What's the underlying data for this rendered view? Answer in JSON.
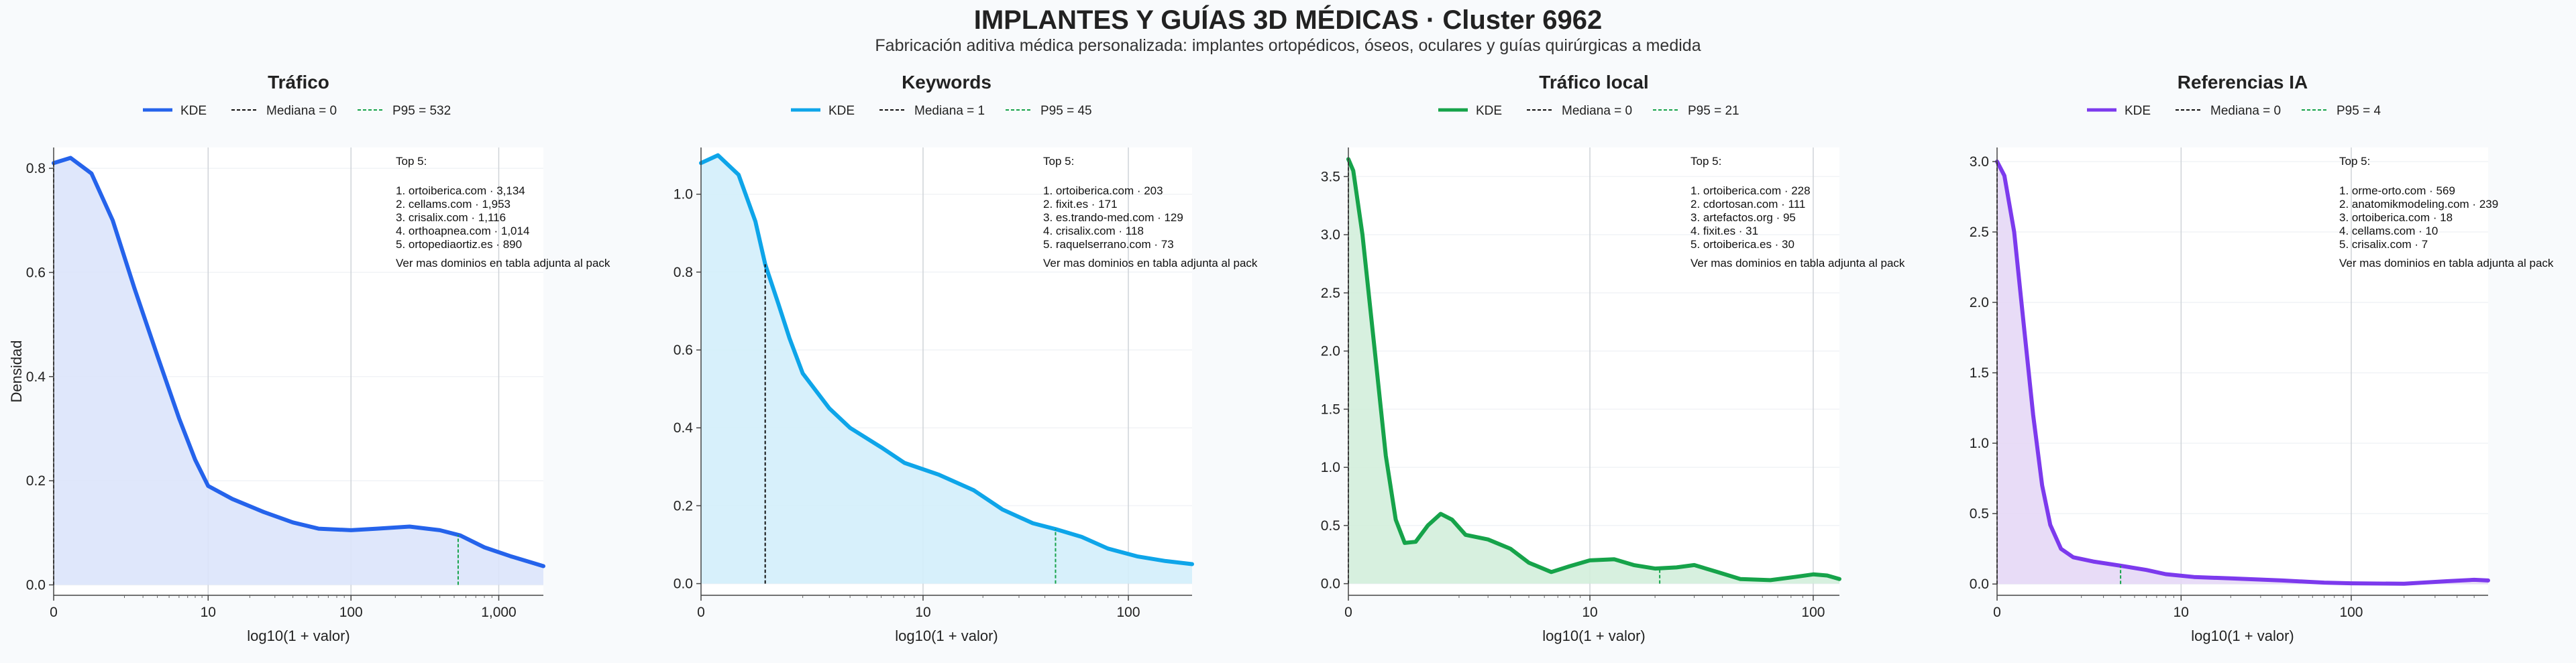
{
  "title": "IMPLANTES Y GUÍAS 3D MÉDICAS · Cluster 6962",
  "subtitle": "Fabricación aditiva médica personalizada: implantes ortopédicos, óseos, oculares y guías quirúrgicas a medida",
  "ylabel": "Densidad",
  "legend_labels": {
    "kde": "KDE"
  },
  "chart_data": [
    {
      "type": "area",
      "title": "Tráfico",
      "color": "#2563eb",
      "fill": "#dbe4fb",
      "xlabel": "log10(1 + valor)",
      "ylabel": "Densidad",
      "x_scale": "log10(1+x)",
      "xlim": [
        0,
        2000
      ],
      "ylim": [
        -0.02,
        0.84
      ],
      "xticks": [
        0,
        10,
        100,
        1000
      ],
      "xtick_labels": [
        "0",
        "10",
        "100",
        "1,000"
      ],
      "yticks": [
        0,
        0.2,
        0.4,
        0.6,
        0.8
      ],
      "ytick_labels": [
        "0.0",
        "0.2",
        "0.4",
        "0.6",
        "0.8"
      ],
      "kde": [
        [
          0,
          0.81
        ],
        [
          0.3,
          0.82
        ],
        [
          0.8,
          0.79
        ],
        [
          1.5,
          0.7
        ],
        [
          2.5,
          0.57
        ],
        [
          4,
          0.44
        ],
        [
          6,
          0.32
        ],
        [
          8,
          0.24
        ],
        [
          10,
          0.19
        ],
        [
          15,
          0.165
        ],
        [
          25,
          0.14
        ],
        [
          40,
          0.12
        ],
        [
          60,
          0.108
        ],
        [
          100,
          0.105
        ],
        [
          150,
          0.108
        ],
        [
          250,
          0.112
        ],
        [
          400,
          0.105
        ],
        [
          550,
          0.095
        ],
        [
          800,
          0.072
        ],
        [
          1200,
          0.055
        ],
        [
          1700,
          0.042
        ],
        [
          2000,
          0.036
        ]
      ],
      "median": {
        "label": "Mediana = 0",
        "value": 0
      },
      "p95": {
        "label": "P95 = 532",
        "value": 532
      },
      "top5_header": "Top 5:",
      "top5": [
        "1. ortoiberica.com · 3,134",
        "2. cellams.com · 1,953",
        "3. crisalix.com · 1,116",
        "4. orthoapnea.com · 1,014",
        "5. ortopediaortiz.es · 890"
      ],
      "footnote": "Ver mas dominios en tabla adjunta al pack"
    },
    {
      "type": "area",
      "title": "Keywords",
      "color": "#0ea5e9",
      "fill": "#d3eefb",
      "xlabel": "log10(1 + valor)",
      "ylabel": "",
      "x_scale": "log10(1+x)",
      "xlim": [
        0,
        200
      ],
      "ylim": [
        -0.03,
        1.12
      ],
      "xticks": [
        0,
        10,
        100
      ],
      "xtick_labels": [
        "0",
        "10",
        "100"
      ],
      "yticks": [
        0,
        0.2,
        0.4,
        0.6,
        0.8,
        1.0
      ],
      "ytick_labels": [
        "0.0",
        "0.2",
        "0.4",
        "0.6",
        "0.8",
        "1.0"
      ],
      "kde": [
        [
          0,
          1.08
        ],
        [
          0.2,
          1.1
        ],
        [
          0.5,
          1.05
        ],
        [
          0.8,
          0.93
        ],
        [
          1,
          0.82
        ],
        [
          1.3,
          0.72
        ],
        [
          1.6,
          0.63
        ],
        [
          2,
          0.54
        ],
        [
          3,
          0.45
        ],
        [
          4,
          0.4
        ],
        [
          6,
          0.35
        ],
        [
          8,
          0.31
        ],
        [
          12,
          0.28
        ],
        [
          18,
          0.24
        ],
        [
          25,
          0.19
        ],
        [
          35,
          0.155
        ],
        [
          45,
          0.14
        ],
        [
          60,
          0.12
        ],
        [
          80,
          0.09
        ],
        [
          110,
          0.07
        ],
        [
          150,
          0.058
        ],
        [
          200,
          0.05
        ]
      ],
      "median": {
        "label": "Mediana = 1",
        "value": 1
      },
      "p95": {
        "label": "P95 = 45",
        "value": 45
      },
      "top5_header": "Top 5:",
      "top5": [
        "1. ortoiberica.com · 203",
        "2. fixit.es · 171",
        "3. es.trando-med.com · 129",
        "4. crisalix.com · 118",
        "5. raquelserrano.com · 73"
      ],
      "footnote": "Ver mas dominios en tabla adjunta al pack"
    },
    {
      "type": "area",
      "title": "Tráfico local",
      "color": "#16a34a",
      "fill": "#d3eedb",
      "xlabel": "log10(1 + valor)",
      "ylabel": "",
      "x_scale": "log10(1+x)",
      "xlim": [
        0,
        130
      ],
      "ylim": [
        -0.1,
        3.75
      ],
      "xticks": [
        0,
        10,
        100
      ],
      "xtick_labels": [
        "0",
        "10",
        "100"
      ],
      "yticks": [
        0,
        0.5,
        1.0,
        1.5,
        2.0,
        2.5,
        3.0,
        3.5
      ],
      "ytick_labels": [
        "0.0",
        "0.5",
        "1.0",
        "1.5",
        "2.0",
        "2.5",
        "3.0",
        "3.5"
      ],
      "kde": [
        [
          0,
          3.65
        ],
        [
          0.05,
          3.55
        ],
        [
          0.15,
          3.0
        ],
        [
          0.3,
          2.0
        ],
        [
          0.45,
          1.1
        ],
        [
          0.6,
          0.55
        ],
        [
          0.75,
          0.35
        ],
        [
          0.95,
          0.36
        ],
        [
          1.2,
          0.5
        ],
        [
          1.5,
          0.6
        ],
        [
          1.8,
          0.55
        ],
        [
          2.2,
          0.42
        ],
        [
          3,
          0.38
        ],
        [
          4,
          0.3
        ],
        [
          5,
          0.18
        ],
        [
          6.5,
          0.1
        ],
        [
          8,
          0.15
        ],
        [
          10,
          0.2
        ],
        [
          13,
          0.21
        ],
        [
          16,
          0.16
        ],
        [
          20,
          0.13
        ],
        [
          25,
          0.14
        ],
        [
          30,
          0.16
        ],
        [
          38,
          0.1
        ],
        [
          48,
          0.04
        ],
        [
          65,
          0.03
        ],
        [
          85,
          0.06
        ],
        [
          100,
          0.08
        ],
        [
          115,
          0.07
        ],
        [
          130,
          0.04
        ]
      ],
      "median": {
        "label": "Mediana = 0",
        "value": 0
      },
      "p95": {
        "label": "P95 = 21",
        "value": 21
      },
      "top5_header": "Top 5:",
      "top5": [
        "1. ortoiberica.com · 228",
        "2. cdortosan.com · 111",
        "3. artefactos.org · 95",
        "4. fixit.es · 31",
        "5. ortoiberica.es · 30"
      ],
      "footnote": "Ver mas dominios en tabla adjunta al pack"
    },
    {
      "type": "area",
      "title": "Referencias IA",
      "color": "#7c3aed",
      "fill": "#e6d8f6",
      "xlabel": "log10(1 + valor)",
      "ylabel": "",
      "x_scale": "log10(1+x)",
      "xlim": [
        0,
        600
      ],
      "ylim": [
        -0.08,
        3.1
      ],
      "xticks": [
        0,
        10,
        100
      ],
      "xtick_labels": [
        "0",
        "10",
        "100"
      ],
      "yticks": [
        0,
        0.5,
        1.0,
        1.5,
        2.0,
        2.5,
        3.0
      ],
      "ytick_labels": [
        "0.0",
        "0.5",
        "1.0",
        "1.5",
        "2.0",
        "2.5",
        "3.0"
      ],
      "kde": [
        [
          0,
          3.0
        ],
        [
          0.1,
          2.9
        ],
        [
          0.25,
          2.5
        ],
        [
          0.4,
          1.9
        ],
        [
          0.6,
          1.2
        ],
        [
          0.8,
          0.7
        ],
        [
          1,
          0.42
        ],
        [
          1.3,
          0.25
        ],
        [
          1.7,
          0.19
        ],
        [
          2.5,
          0.16
        ],
        [
          4,
          0.13
        ],
        [
          6,
          0.1
        ],
        [
          8,
          0.07
        ],
        [
          12,
          0.05
        ],
        [
          20,
          0.04
        ],
        [
          40,
          0.025
        ],
        [
          70,
          0.01
        ],
        [
          100,
          0.005
        ],
        [
          200,
          0.002
        ],
        [
          350,
          0.02
        ],
        [
          500,
          0.03
        ],
        [
          600,
          0.025
        ]
      ],
      "median": {
        "label": "Mediana = 0",
        "value": 0
      },
      "p95": {
        "label": "P95 = 4",
        "value": 4
      },
      "top5_header": "Top 5:",
      "top5": [
        "1. orme-orto.com · 569",
        "2. anatomikmodeling.com · 239",
        "3. ortoiberica.com · 18",
        "4. cellams.com · 10",
        "5. crisalix.com · 7"
      ],
      "footnote": "Ver mas dominios en tabla adjunta al pack"
    }
  ]
}
